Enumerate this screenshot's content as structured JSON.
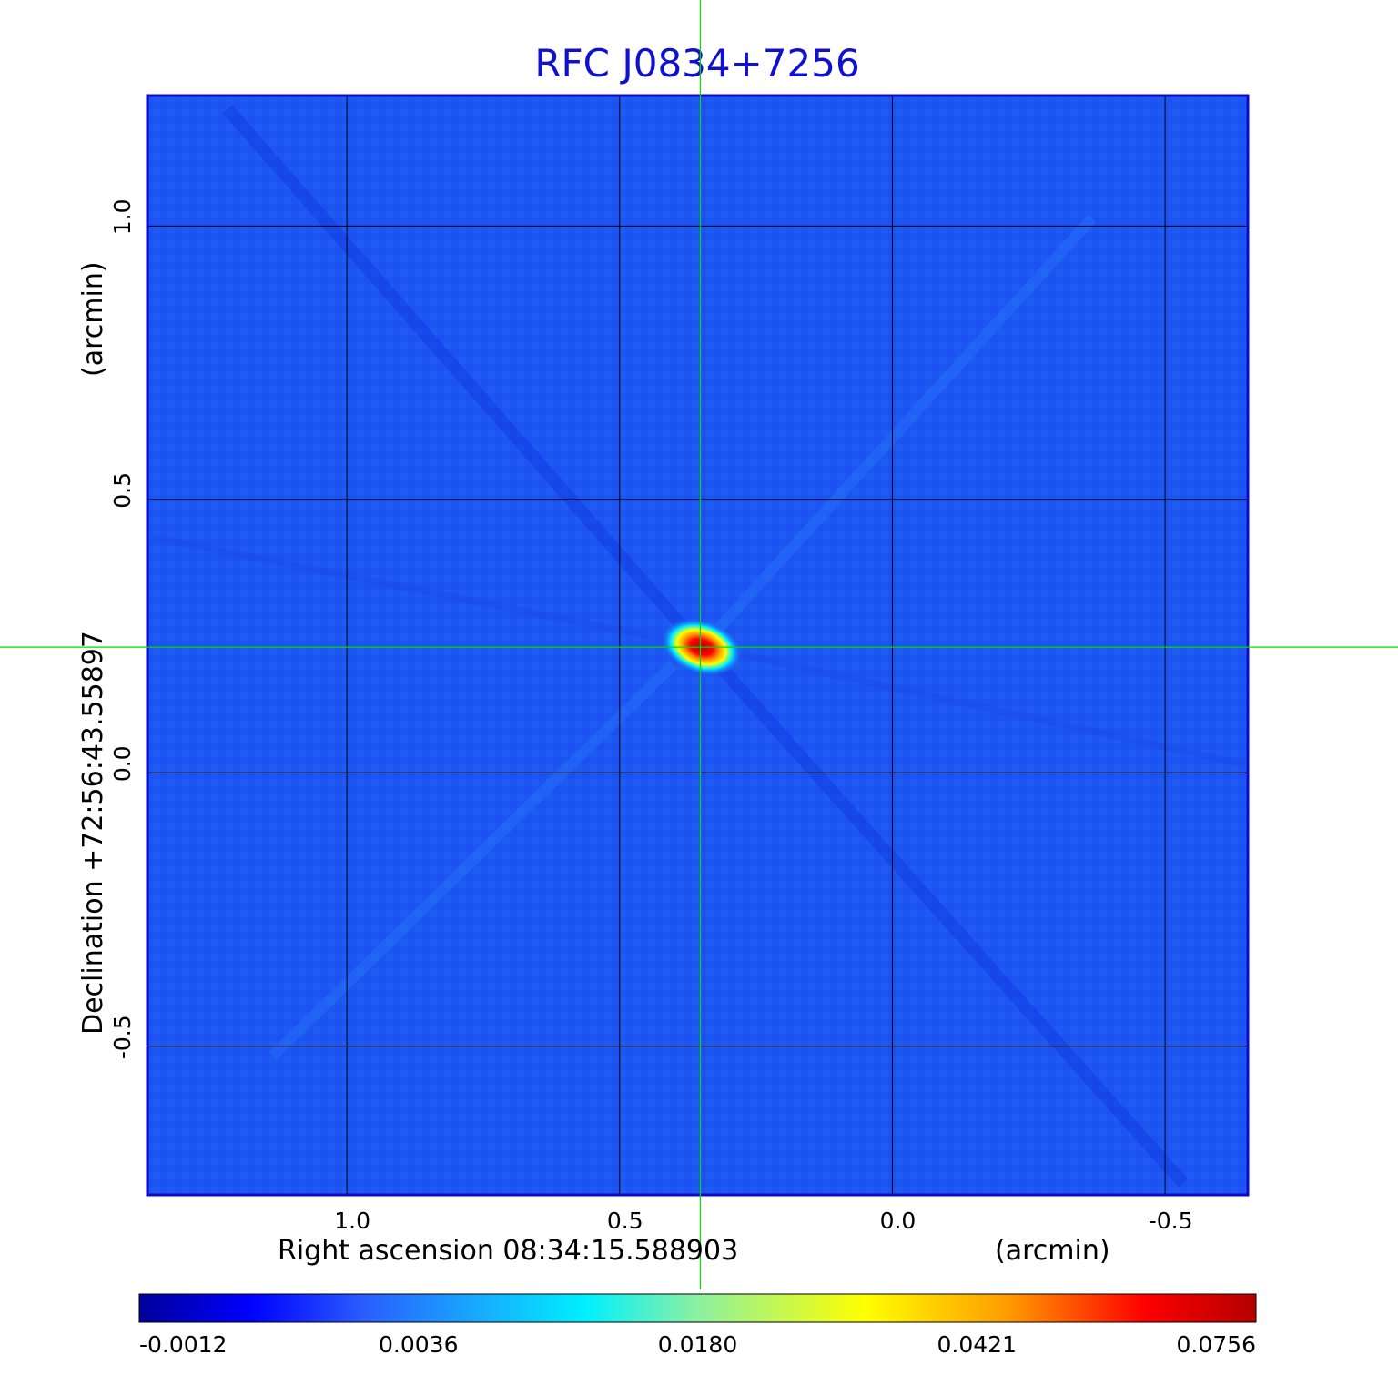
{
  "chart_data": {
    "type": "heatmap",
    "title": "RFC J0834+7256",
    "xlabel": "Right ascension  08:34:15.588903",
    "xlabel_unit": "(arcmin)",
    "ylabel": "Declination  +72:56:43.55897",
    "ylabel_unit": "(arcmin)",
    "x_ticks": [
      {
        "value": 1.0,
        "label": "1.0"
      },
      {
        "value": 0.5,
        "label": "0.5"
      },
      {
        "value": 0.0,
        "label": "0.0"
      },
      {
        "value": -0.5,
        "label": "-0.5"
      }
    ],
    "y_ticks": [
      {
        "value": 1.0,
        "label": "1.0"
      },
      {
        "value": 0.5,
        "label": "0.5"
      },
      {
        "value": 0.0,
        "label": "0.0"
      },
      {
        "value": -0.5,
        "label": "-0.5"
      }
    ],
    "xlim": [
      1.364,
      -0.65
    ],
    "ylim": [
      -0.77,
      1.237
    ],
    "grid": true,
    "crosshair": {
      "x": 0.352,
      "y": 0.23
    },
    "source_peak": {
      "x": 0.35,
      "y": 0.23,
      "value": 0.0756
    },
    "colorbar": {
      "placement": "bottom",
      "ticks": [
        {
          "value": -0.0012,
          "label": "-0.0012"
        },
        {
          "value": 0.0036,
          "label": "0.0036"
        },
        {
          "value": 0.018,
          "label": "0.0180"
        },
        {
          "value": 0.0421,
          "label": "0.0421"
        },
        {
          "value": 0.0756,
          "label": "0.0756"
        }
      ],
      "colormap": [
        "#00009a",
        "#0000ff",
        "#2a5cff",
        "#18a8ff",
        "#00f0ff",
        "#8cf0a0",
        "#ffff00",
        "#ff9900",
        "#ff0000",
        "#b40000"
      ]
    },
    "colors": {
      "background_field": "#1c55f2",
      "frame": "#0a0acc",
      "crosshair": "#00dd00",
      "grid": "#000000"
    }
  }
}
